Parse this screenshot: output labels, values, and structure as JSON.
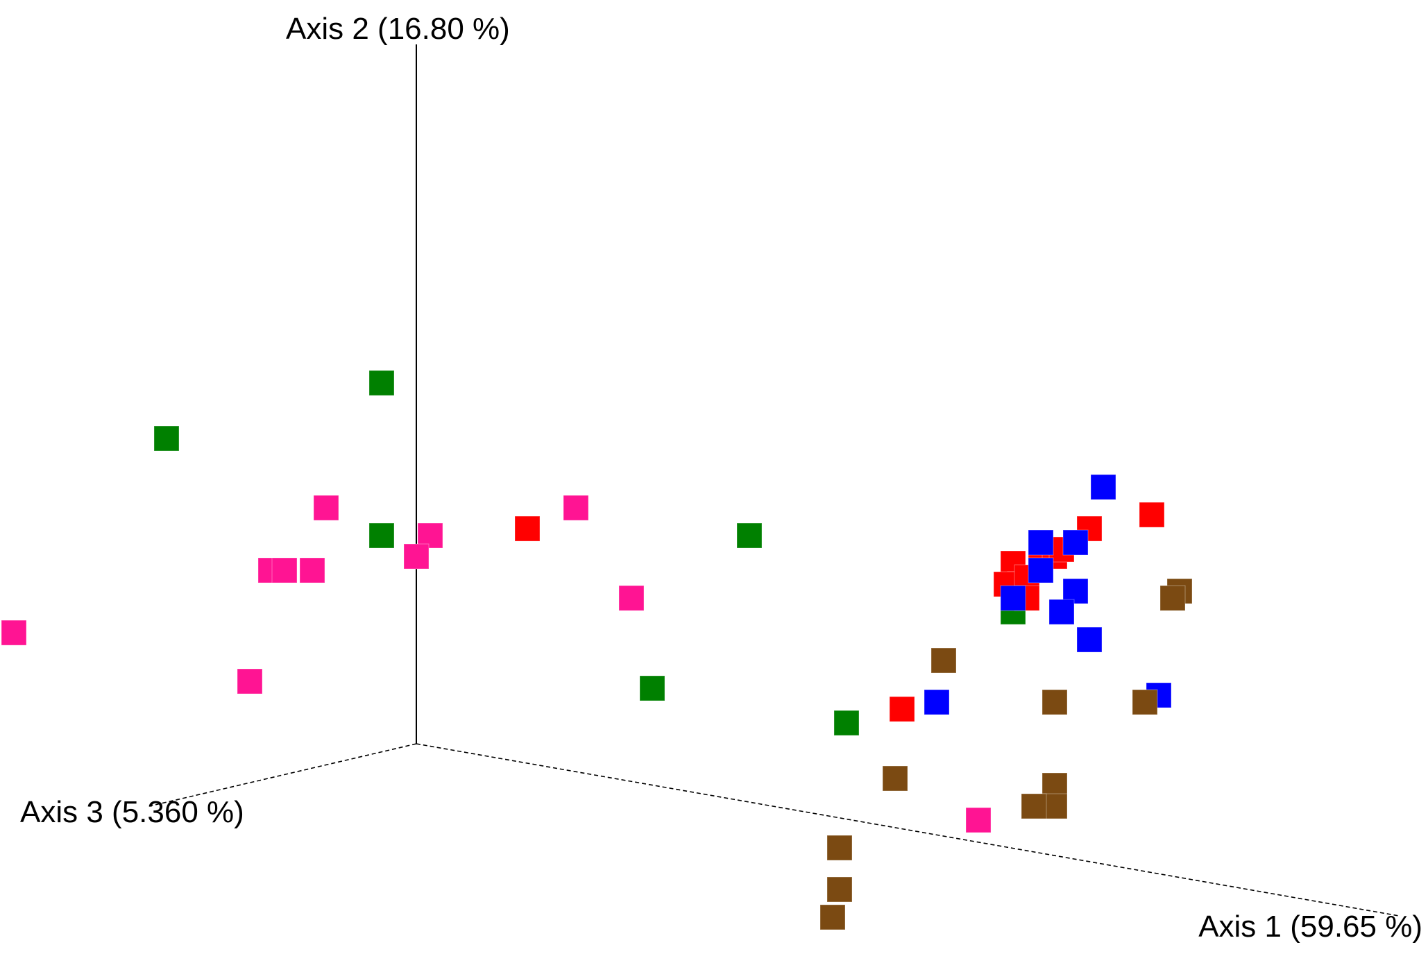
{
  "chart_data": {
    "type": "scatter",
    "title": "",
    "axes": {
      "axis1_label": "Axis 1 (59.65 %)",
      "axis2_label": "Axis 2 (16.80 %)",
      "axis3_label": "Axis 3 (5.360 %)"
    },
    "legend": "none",
    "grid": false,
    "series": [
      {
        "color": "#008000",
        "points": [
          {
            "a1": -0.05,
            "a2": 0.52
          },
          {
            "a1": -0.36,
            "a2": 0.44
          },
          {
            "a1": -0.76,
            "a2": 0.09
          },
          {
            "a1": -0.05,
            "a2": 0.3
          },
          {
            "a1": 0.48,
            "a2": 0.3
          },
          {
            "a1": 0.34,
            "a2": 0.08
          },
          {
            "a1": 0.62,
            "a2": 0.03
          },
          {
            "a1": 0.86,
            "a2": 0.19
          }
        ]
      },
      {
        "color": "#ff1493",
        "points": [
          {
            "a1": -0.13,
            "a2": 0.34
          },
          {
            "a1": 0.23,
            "a2": 0.34
          },
          {
            "a1": 0.02,
            "a2": 0.3
          },
          {
            "a1": 0.0,
            "a2": 0.27
          },
          {
            "a1": -0.21,
            "a2": 0.25
          },
          {
            "a1": -0.19,
            "a2": 0.25
          },
          {
            "a1": -0.15,
            "a2": 0.25
          },
          {
            "a1": -0.58,
            "a2": 0.16
          },
          {
            "a1": 0.31,
            "a2": 0.21
          },
          {
            "a1": -0.24,
            "a2": 0.09
          },
          {
            "a1": -0.67,
            "a2": 0.07
          },
          {
            "a1": 0.81,
            "a2": -0.11
          }
        ]
      },
      {
        "color": "#ff0000",
        "points": [
          {
            "a1": 0.16,
            "a2": 0.31
          },
          {
            "a1": 0.97,
            "a2": 0.31
          },
          {
            "a1": 0.9,
            "a2": 0.27
          },
          {
            "a1": 0.86,
            "a2": 0.26
          },
          {
            "a1": 0.92,
            "a2": 0.27
          },
          {
            "a1": 0.93,
            "a2": 0.28
          },
          {
            "a1": 0.87,
            "a2": 0.23
          },
          {
            "a1": 0.85,
            "a2": 0.23
          },
          {
            "a1": 0.88,
            "a2": 0.24
          },
          {
            "a1": 0.88,
            "a2": 0.21
          },
          {
            "a1": 1.06,
            "a2": 0.33
          },
          {
            "a1": 0.7,
            "a2": 0.05
          }
        ]
      },
      {
        "color": "#0000ff",
        "points": [
          {
            "a1": 0.99,
            "a2": 0.37
          },
          {
            "a1": 0.9,
            "a2": 0.29
          },
          {
            "a1": 0.95,
            "a2": 0.29
          },
          {
            "a1": 0.9,
            "a2": 0.25
          },
          {
            "a1": 0.95,
            "a2": 0.22
          },
          {
            "a1": 0.93,
            "a2": 0.19
          },
          {
            "a1": 0.86,
            "a2": 0.21
          },
          {
            "a1": 0.97,
            "a2": 0.15
          },
          {
            "a1": 0.75,
            "a2": 0.06
          },
          {
            "a1": 1.07,
            "a2": 0.07
          }
        ]
      },
      {
        "color": "#7b4a12",
        "points": [
          {
            "a1": 1.1,
            "a2": 0.22
          },
          {
            "a1": 1.09,
            "a2": 0.21
          },
          {
            "a1": 0.76,
            "a2": 0.12
          },
          {
            "a1": 0.92,
            "a2": 0.06
          },
          {
            "a1": 1.05,
            "a2": 0.06
          },
          {
            "a1": 0.92,
            "a2": -0.06
          },
          {
            "a1": 0.92,
            "a2": -0.09
          },
          {
            "a1": 0.69,
            "a2": -0.05
          },
          {
            "a1": 0.89,
            "a2": -0.09
          },
          {
            "a1": 0.61,
            "a2": -0.15
          },
          {
            "a1": 0.61,
            "a2": -0.21
          },
          {
            "a1": 0.6,
            "a2": -0.25
          }
        ]
      }
    ]
  }
}
